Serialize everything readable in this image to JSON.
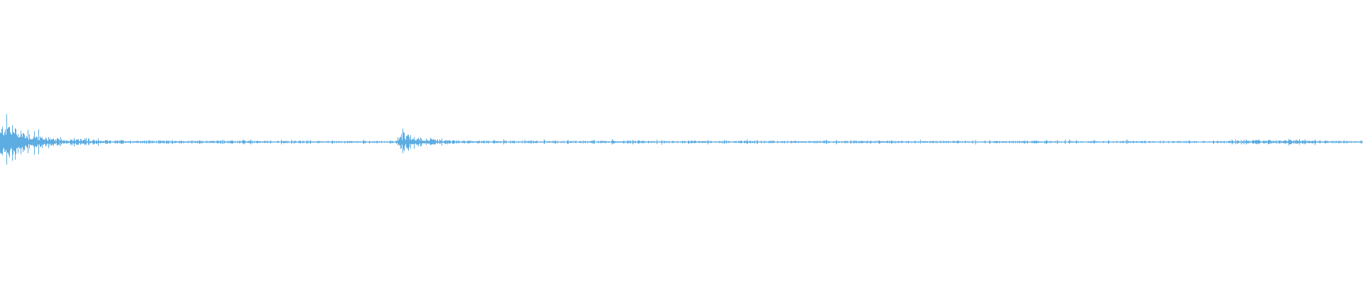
{
  "waveform": {
    "color": "#5dade2",
    "background": "#ffffff",
    "envelope": [
      {
        "t": 0.0,
        "amp": 0.1
      },
      {
        "t": 0.004,
        "amp": 0.19
      },
      {
        "t": 0.01,
        "amp": 0.14
      },
      {
        "t": 0.02,
        "amp": 0.07
      },
      {
        "t": 0.04,
        "amp": 0.025
      },
      {
        "t": 0.08,
        "amp": 0.012
      },
      {
        "t": 0.29,
        "amp": 0.008
      },
      {
        "t": 0.296,
        "amp": 0.065
      },
      {
        "t": 0.305,
        "amp": 0.04
      },
      {
        "t": 0.32,
        "amp": 0.018
      },
      {
        "t": 0.345,
        "amp": 0.01
      },
      {
        "t": 0.9,
        "amp": 0.008
      },
      {
        "t": 0.915,
        "amp": 0.014
      },
      {
        "t": 0.95,
        "amp": 0.016
      },
      {
        "t": 0.975,
        "amp": 0.01
      },
      {
        "t": 1.0,
        "amp": 0.008
      }
    ]
  }
}
